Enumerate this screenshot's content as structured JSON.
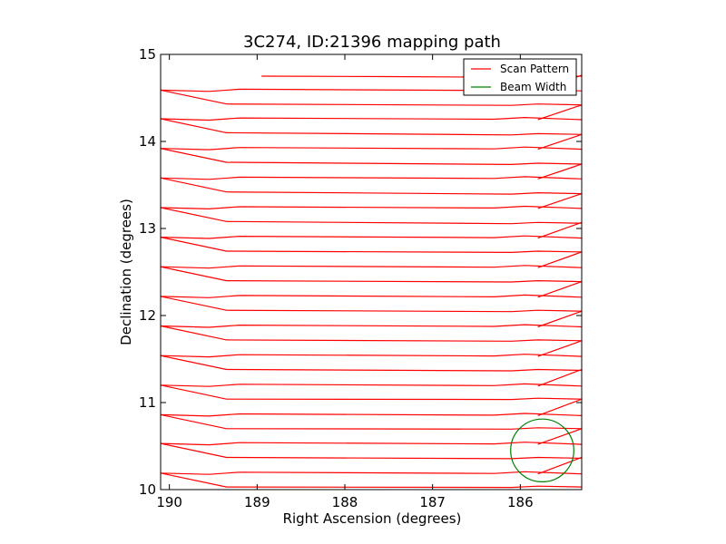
{
  "chart_data": {
    "type": "line",
    "title": "3C274, ID:21396 mapping path",
    "xlabel": "Right Ascension (degrees)",
    "ylabel": "Declination (degrees)",
    "xlim": [
      190.1,
      185.3
    ],
    "ylim": [
      10,
      15
    ],
    "x_reversed": true,
    "xticks": [
      190,
      189,
      188,
      187,
      186
    ],
    "xtick_labels": [
      "190",
      "189",
      "188",
      "187",
      "186"
    ],
    "yticks": [
      10,
      11,
      12,
      13,
      14,
      15
    ],
    "ytick_labels": [
      "10",
      "11",
      "12",
      "13",
      "14",
      "15"
    ],
    "grid": false,
    "legend_position": "top-right",
    "series": [
      {
        "name": "Scan Pattern",
        "color": "#ff0000",
        "scan_rows": [
          {
            "y_left": 10.19,
            "y_right": 10.03,
            "x_left": 190.1,
            "x_right": 185.3
          },
          {
            "y_left": 10.53,
            "y_right": 10.36,
            "x_left": 190.1,
            "x_right": 185.3
          },
          {
            "y_left": 10.86,
            "y_right": 10.7,
            "x_left": 190.1,
            "x_right": 185.3
          },
          {
            "y_left": 11.2,
            "y_right": 11.04,
            "x_left": 190.1,
            "x_right": 185.3
          },
          {
            "y_left": 11.54,
            "y_right": 11.37,
            "x_left": 190.1,
            "x_right": 185.3
          },
          {
            "y_left": 11.88,
            "y_right": 11.71,
            "x_left": 190.1,
            "x_right": 185.3
          },
          {
            "y_left": 12.22,
            "y_right": 12.05,
            "x_left": 190.1,
            "x_right": 185.3
          },
          {
            "y_left": 12.56,
            "y_right": 12.39,
            "x_left": 190.1,
            "x_right": 185.3
          },
          {
            "y_left": 12.9,
            "y_right": 12.73,
            "x_left": 190.1,
            "x_right": 185.3
          },
          {
            "y_left": 13.24,
            "y_right": 13.06,
            "x_left": 190.1,
            "x_right": 185.3
          },
          {
            "y_left": 13.58,
            "y_right": 13.4,
            "x_left": 190.1,
            "x_right": 185.3
          },
          {
            "y_left": 13.92,
            "y_right": 13.74,
            "x_left": 190.1,
            "x_right": 185.3
          },
          {
            "y_left": 14.26,
            "y_right": 14.08,
            "x_left": 190.1,
            "x_right": 185.3
          },
          {
            "y_left": 14.59,
            "y_right": 14.42,
            "x_left": 190.1,
            "x_right": 185.3
          }
        ],
        "top_row": {
          "y": 14.75,
          "x_start": 188.95,
          "x_end": 185.3
        }
      },
      {
        "name": "Beam Width",
        "color": "#008000",
        "circle": {
          "x_center": 185.75,
          "y_center": 10.45,
          "radius_deg": 0.36
        }
      }
    ]
  }
}
